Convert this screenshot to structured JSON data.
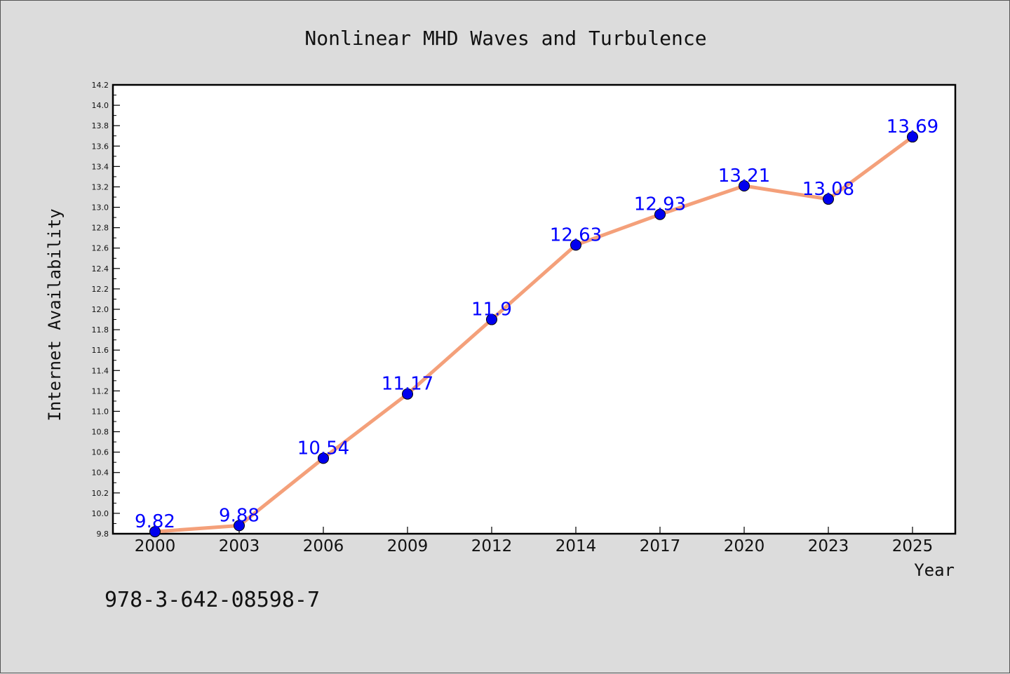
{
  "chart_data": {
    "type": "line",
    "title": "Nonlinear MHD Waves and Turbulence",
    "xlabel": "Year",
    "ylabel": "Internet Availability",
    "categories": [
      "2000",
      "2003",
      "2006",
      "2009",
      "2012",
      "2014",
      "2017",
      "2020",
      "2023",
      "2025"
    ],
    "series": [
      {
        "values": [
          9.82,
          9.88,
          10.54,
          11.17,
          11.9,
          12.63,
          12.93,
          13.21,
          13.08,
          13.69
        ],
        "data_labels": [
          "9.82",
          "9.88",
          "10.54",
          "11.17",
          "11.9",
          "12.63",
          "12.93",
          "13.21",
          "13.08",
          "13.69"
        ],
        "line_color": "#f4a07a",
        "marker_color": "#0000ee"
      }
    ],
    "ylim": [
      9.8,
      14.2
    ],
    "yticks": [
      "9.8",
      "10.0",
      "10.2",
      "10.4",
      "10.6",
      "10.8",
      "11.0",
      "11.2",
      "11.4",
      "11.6",
      "11.8",
      "12.0",
      "12.2",
      "12.4",
      "12.6",
      "12.8",
      "13.0",
      "13.2",
      "13.4",
      "13.6",
      "13.8",
      "14.0",
      "14.2"
    ],
    "grid": false,
    "label_color": "#0000ff"
  },
  "footer_text": "978-3-642-08598-7"
}
